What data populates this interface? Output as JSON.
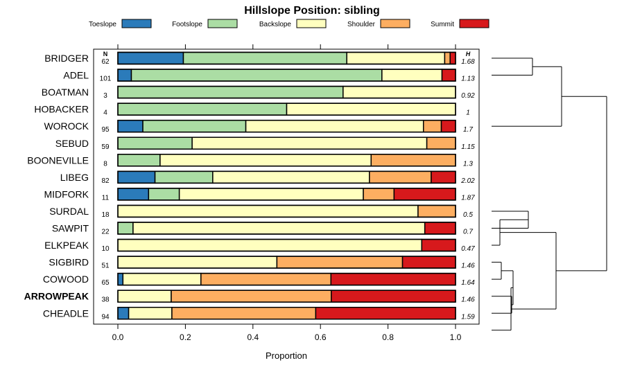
{
  "chart_data": {
    "type": "bar",
    "stacked": true,
    "orientation": "horizontal",
    "title": "Hillslope Position: sibling",
    "xlabel": "Proportion",
    "xlim": [
      0,
      1
    ],
    "xticks": [
      "0.0",
      "0.2",
      "0.4",
      "0.6",
      "0.8",
      "1.0"
    ],
    "n_header": "N",
    "h_header": "H",
    "highlight_category": "ARROWPEAK",
    "legend_position": "top",
    "series": [
      {
        "name": "Toeslope",
        "color": "#2b7bba"
      },
      {
        "name": "Footslope",
        "color": "#abdda4"
      },
      {
        "name": "Backslope",
        "color": "#ffffbf"
      },
      {
        "name": "Shoulder",
        "color": "#fdae61"
      },
      {
        "name": "Summit",
        "color": "#d7191c"
      }
    ],
    "categories": [
      "BRIDGER",
      "ADEL",
      "BOATMAN",
      "HOBACKER",
      "WOROCK",
      "SEBUD",
      "BOONEVILLE",
      "LIBEG",
      "MIDFORK",
      "SURDAL",
      "SAWPIT",
      "ELKPEAK",
      "SIGBIRD",
      "COWOOD",
      "ARROWPEAK",
      "CHEADLE"
    ],
    "n": [
      "62",
      "101",
      "3",
      "4",
      "95",
      "59",
      "8",
      "82",
      "11",
      "18",
      "22",
      "10",
      "51",
      "65",
      "38",
      "94"
    ],
    "h": [
      "1.68",
      "1.13",
      "0.92",
      "1",
      "1.7",
      "1.15",
      "1.3",
      "2.02",
      "1.87",
      "0.5",
      "0.7",
      "0.47",
      "1.46",
      "1.64",
      "1.46",
      "1.59"
    ],
    "values": [
      [
        0.194,
        0.484,
        0.29,
        0.016,
        0.016
      ],
      [
        0.04,
        0.742,
        0.178,
        0.0,
        0.04
      ],
      [
        0.0,
        0.667,
        0.333,
        0.0,
        0.0
      ],
      [
        0.0,
        0.5,
        0.5,
        0.0,
        0.0
      ],
      [
        0.074,
        0.305,
        0.526,
        0.053,
        0.042
      ],
      [
        0.0,
        0.22,
        0.695,
        0.085,
        0.0
      ],
      [
        0.0,
        0.125,
        0.625,
        0.25,
        0.0
      ],
      [
        0.11,
        0.171,
        0.464,
        0.183,
        0.072
      ],
      [
        0.091,
        0.091,
        0.545,
        0.091,
        0.182
      ],
      [
        0.0,
        0.0,
        0.889,
        0.111,
        0.0
      ],
      [
        0.0,
        0.045,
        0.864,
        0.0,
        0.091
      ],
      [
        0.0,
        0.0,
        0.9,
        0.0,
        0.1
      ],
      [
        0.0,
        0.0,
        0.471,
        0.372,
        0.157
      ],
      [
        0.015,
        0.0,
        0.231,
        0.385,
        0.369
      ],
      [
        0.0,
        0.0,
        0.158,
        0.474,
        0.368
      ],
      [
        0.032,
        0.0,
        0.128,
        0.426,
        0.414
      ]
    ],
    "dendrogram": {
      "type": "hierarchical clustering",
      "merges": [
        [
          1,
          2
        ],
        [
          3,
          4
        ],
        [
          -1,
          -2
        ],
        [
          -3,
          -4
        ],
        [
          -5,
          3
        ],
        [
          6,
          7
        ],
        [
          -6,
          -7
        ],
        [
          -10,
          -11
        ],
        [
          -12,
          8
        ],
        [
          -13,
          -14
        ],
        [
          -15,
          -16
        ],
        [
          10,
          11
        ],
        [
          -17,
          12
        ],
        [
          9,
          13
        ],
        [
          5,
          14
        ]
      ]
    }
  }
}
